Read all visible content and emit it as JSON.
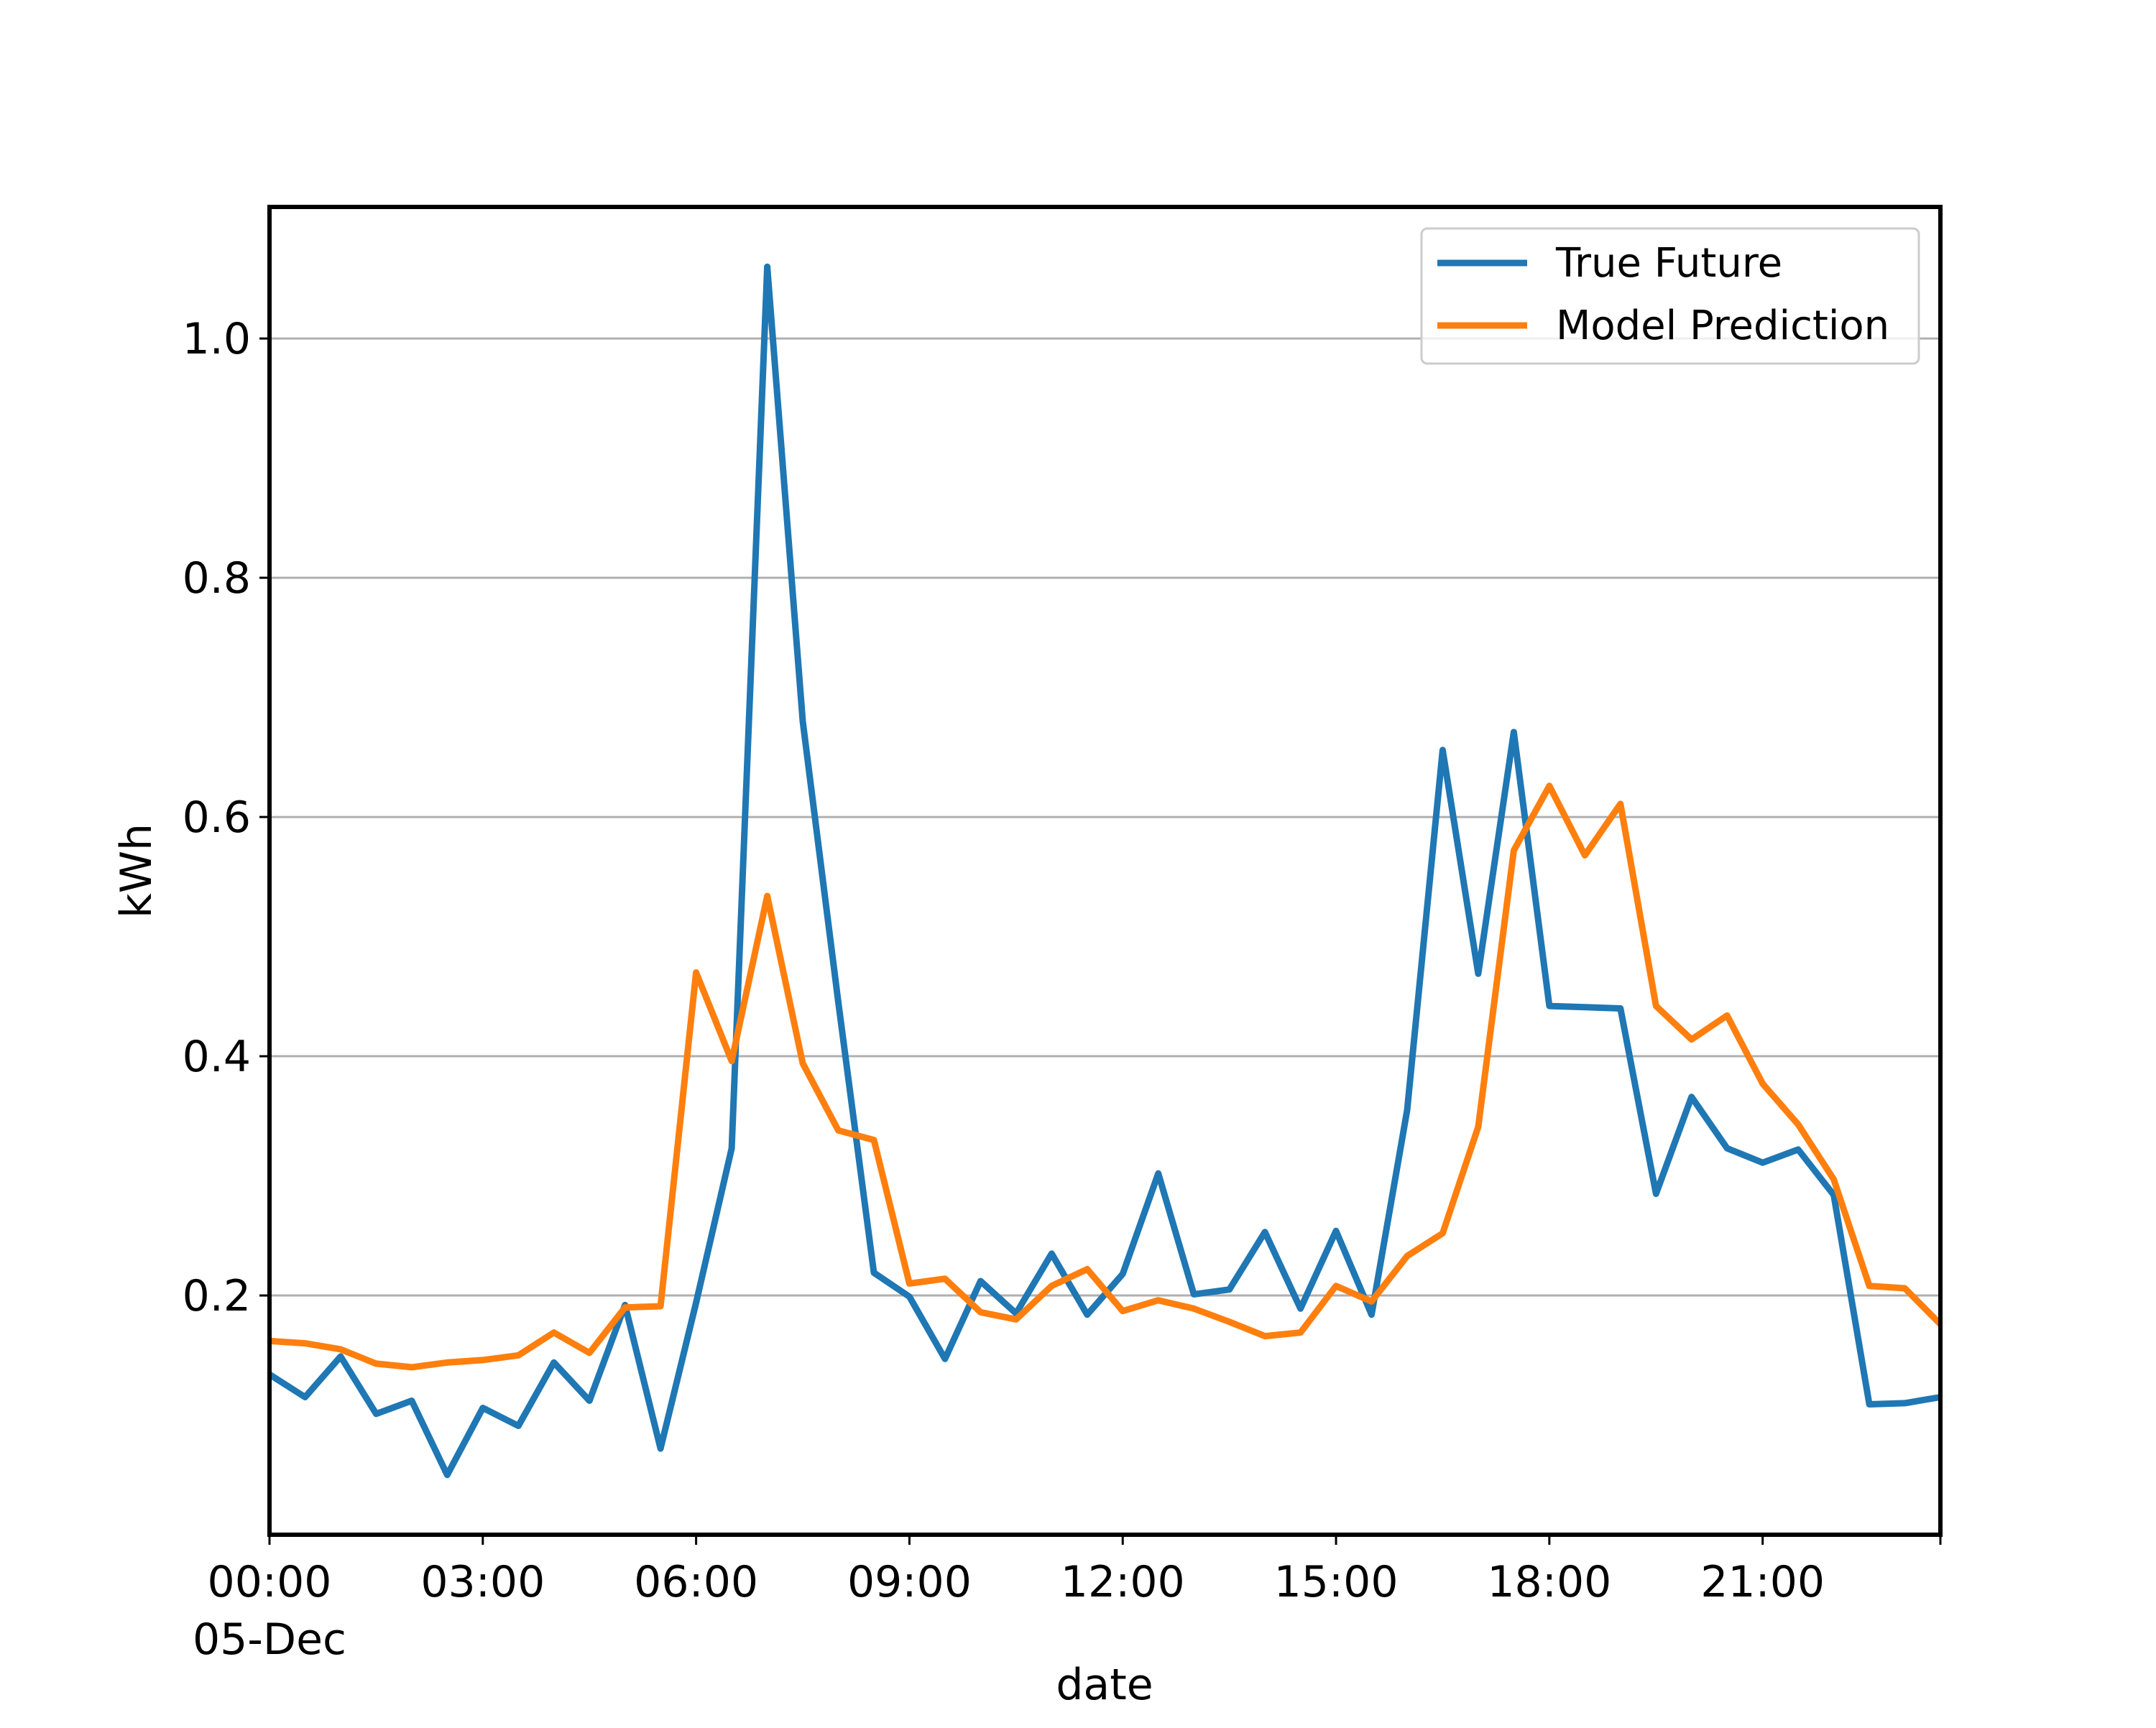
{
  "chart_data": {
    "type": "line",
    "xlabel": "date",
    "ylabel": "kWh",
    "grid": "horizontal",
    "legend_position": "top-right",
    "xlim": [
      "05-Dec 00:00",
      "05-Dec 23:30"
    ],
    "ylim": [
      0.0,
      1.11
    ],
    "y_ticks": [
      0.2,
      0.4,
      0.6,
      0.8,
      1.0
    ],
    "y_tick_labels": [
      "0.2",
      "0.4",
      "0.6",
      "0.8",
      "1.0"
    ],
    "x_ticks": [
      "00:00",
      "03:00",
      "06:00",
      "09:00",
      "12:00",
      "15:00",
      "18:00",
      "21:00"
    ],
    "x_tick_labels": [
      "00:00",
      "03:00",
      "06:00",
      "09:00",
      "12:00",
      "15:00",
      "18:00",
      "21:00"
    ],
    "x_first_tick_sublabel": "05-Dec",
    "x": [
      "00:00",
      "00:30",
      "01:00",
      "01:30",
      "02:00",
      "02:30",
      "03:00",
      "03:30",
      "04:00",
      "04:30",
      "05:00",
      "05:30",
      "06:00",
      "06:30",
      "07:00",
      "07:30",
      "08:00",
      "08:30",
      "09:00",
      "09:30",
      "10:00",
      "10:30",
      "11:00",
      "11:30",
      "12:00",
      "12:30",
      "13:00",
      "13:30",
      "14:00",
      "14:30",
      "15:00",
      "15:30",
      "16:00",
      "16:30",
      "17:00",
      "17:30",
      "18:00",
      "18:30",
      "19:00",
      "19:30",
      "20:00",
      "20:30",
      "21:00",
      "21:30",
      "22:00",
      "22:30",
      "23:00",
      "23:30"
    ],
    "series": [
      {
        "name": "True Future",
        "color": "#1f77b4",
        "values": [
          0.134,
          0.115,
          0.149,
          0.101,
          0.112,
          0.05,
          0.106,
          0.091,
          0.144,
          0.112,
          0.192,
          0.072,
          0.194,
          0.323,
          1.06,
          0.68,
          0.445,
          0.219,
          0.199,
          0.147,
          0.212,
          0.185,
          0.235,
          0.184,
          0.218,
          0.302,
          0.201,
          0.205,
          0.253,
          0.189,
          0.254,
          0.184,
          0.355,
          0.656,
          0.469,
          0.671,
          0.442,
          0.441,
          0.44,
          0.285,
          0.366,
          0.323,
          0.311,
          0.322,
          0.284,
          0.109,
          0.11,
          0.115
        ]
      },
      {
        "name": "Model Prediction",
        "color": "#ff7f0e",
        "values": [
          0.162,
          0.16,
          0.155,
          0.143,
          0.14,
          0.144,
          0.146,
          0.15,
          0.169,
          0.152,
          0.19,
          0.191,
          0.47,
          0.396,
          0.534,
          0.394,
          0.338,
          0.33,
          0.21,
          0.214,
          0.186,
          0.18,
          0.208,
          0.222,
          0.187,
          0.196,
          0.189,
          0.178,
          0.166,
          0.169,
          0.208,
          0.195,
          0.233,
          0.252,
          0.341,
          0.572,
          0.626,
          0.568,
          0.611,
          0.442,
          0.414,
          0.434,
          0.377,
          0.343,
          0.297,
          0.208,
          0.206,
          0.176
        ]
      }
    ]
  }
}
